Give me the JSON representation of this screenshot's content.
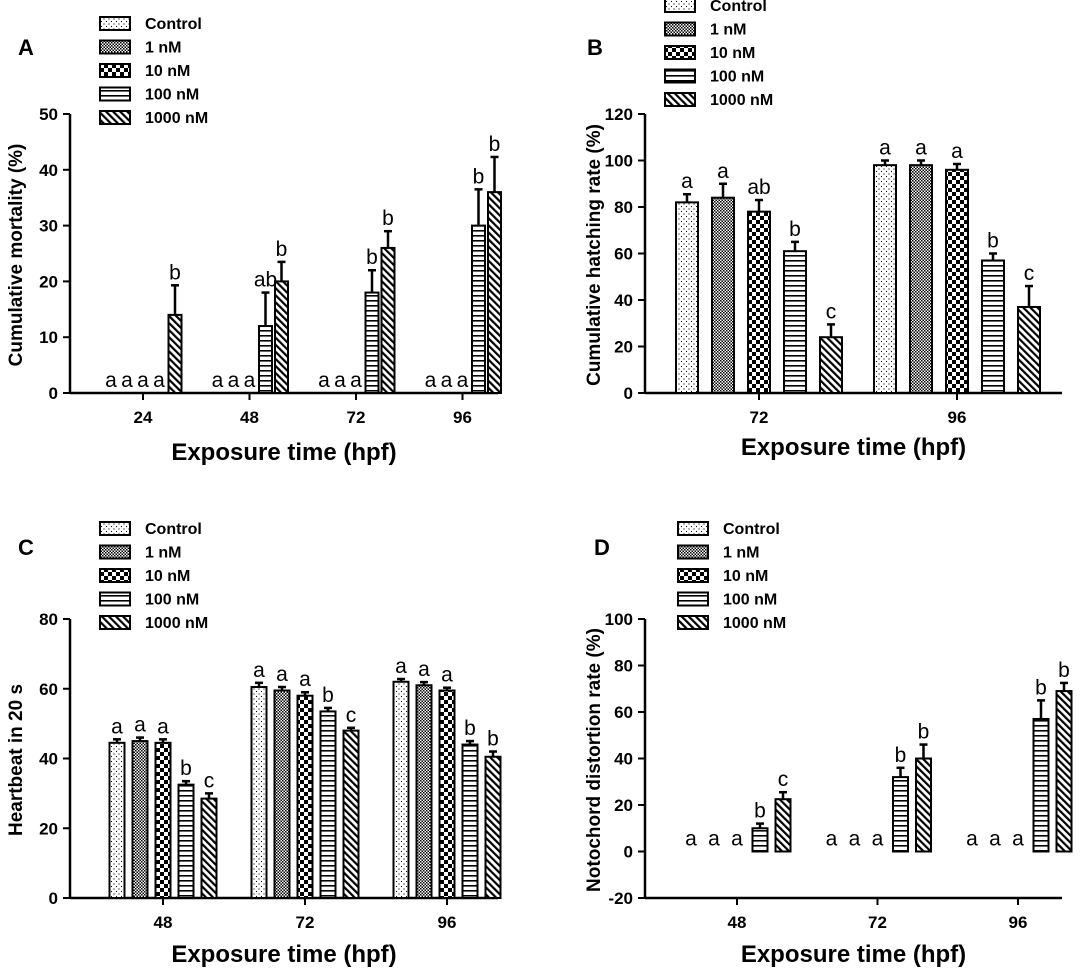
{
  "legend_labels": [
    "Control",
    "1 nM",
    "10 nM",
    "100 nM",
    "1000 nM"
  ],
  "colors": {
    "ink": "#000000",
    "fill": "#ffffff"
  },
  "chart_data": [
    {
      "panel": "A",
      "type": "bar",
      "xlabel": "Exposure time (hpf)",
      "ylabel": "Cumulative mortality (%)",
      "ylim": [
        0,
        50
      ],
      "yticks": [
        0,
        10,
        20,
        30,
        40,
        50
      ],
      "categories": [
        "24",
        "48",
        "72",
        "96"
      ],
      "series": [
        {
          "name": "Control",
          "values": [
            0,
            0,
            0,
            0
          ],
          "errors": [
            0,
            0,
            0,
            0
          ],
          "letters": [
            "a",
            "a",
            "a",
            "a"
          ]
        },
        {
          "name": "1 nM",
          "values": [
            0,
            0,
            0,
            0
          ],
          "errors": [
            0,
            0,
            0,
            0
          ],
          "letters": [
            "a",
            "a",
            "a",
            "a"
          ]
        },
        {
          "name": "10 nM",
          "values": [
            0,
            0,
            0,
            0
          ],
          "errors": [
            0,
            0,
            0,
            0
          ],
          "letters": [
            "a",
            "a",
            "a",
            "a"
          ]
        },
        {
          "name": "100 nM",
          "values": [
            0,
            12,
            18,
            30
          ],
          "errors": [
            0,
            6,
            4,
            6.5
          ],
          "letters": [
            "a",
            "ab",
            "b",
            "b"
          ]
        },
        {
          "name": "1000 nM",
          "values": [
            14,
            20,
            26,
            36
          ],
          "errors": [
            5.3,
            3.5,
            3,
            6.3
          ],
          "letters": [
            "b",
            "b",
            "b",
            "b"
          ]
        }
      ]
    },
    {
      "panel": "B",
      "type": "bar",
      "xlabel": "Exposure time (hpf)",
      "ylabel": "Cumulative hatching rate (%)",
      "ylim": [
        0,
        120
      ],
      "yticks": [
        0,
        20,
        40,
        60,
        80,
        100,
        120
      ],
      "categories": [
        "72",
        "96"
      ],
      "series": [
        {
          "name": "Control",
          "values": [
            82,
            98
          ],
          "errors": [
            3.5,
            2
          ],
          "letters": [
            "a",
            "a"
          ]
        },
        {
          "name": "1 nM",
          "values": [
            84,
            98
          ],
          "errors": [
            6,
            2
          ],
          "letters": [
            "a",
            "a"
          ]
        },
        {
          "name": "10 nM",
          "values": [
            78,
            96
          ],
          "errors": [
            5,
            2.5
          ],
          "letters": [
            "ab",
            "a"
          ]
        },
        {
          "name": "100 nM",
          "values": [
            61,
            57
          ],
          "errors": [
            4,
            3
          ],
          "letters": [
            "b",
            "b"
          ]
        },
        {
          "name": "1000 nM",
          "values": [
            24,
            37
          ],
          "errors": [
            5.5,
            9
          ],
          "letters": [
            "c",
            "c"
          ]
        }
      ]
    },
    {
      "panel": "C",
      "type": "bar",
      "xlabel": "Exposure time (hpf)",
      "ylabel": "Heartbeat in 20 s",
      "ylim": [
        0,
        80
      ],
      "yticks": [
        0,
        20,
        40,
        60,
        80
      ],
      "categories": [
        "48",
        "72",
        "96"
      ],
      "series": [
        {
          "name": "Control",
          "values": [
            44.5,
            60.5,
            62
          ],
          "errors": [
            1,
            1.2,
            0.8
          ],
          "letters": [
            "a",
            "a",
            "a"
          ]
        },
        {
          "name": "1 nM",
          "values": [
            45,
            59.5,
            61
          ],
          "errors": [
            1,
            1,
            0.9
          ],
          "letters": [
            "a",
            "a",
            "a"
          ]
        },
        {
          "name": "10 nM",
          "values": [
            44.5,
            58,
            59.5
          ],
          "errors": [
            1,
            1,
            0.8
          ],
          "letters": [
            "a",
            "a",
            "a"
          ]
        },
        {
          "name": "100 nM",
          "values": [
            32.5,
            53.5,
            44
          ],
          "errors": [
            1,
            1,
            1
          ],
          "letters": [
            "b",
            "b",
            "b"
          ]
        },
        {
          "name": "1000 nM",
          "values": [
            28.5,
            48,
            40.5
          ],
          "errors": [
            1.5,
            0.8,
            1.5
          ],
          "letters": [
            "c",
            "c",
            "b"
          ]
        }
      ]
    },
    {
      "panel": "D",
      "type": "bar",
      "xlabel": "Exposure time (hpf)",
      "ylabel": "Notochord distortion rate (%)",
      "ylim": [
        -20,
        100
      ],
      "yticks": [
        -20,
        0,
        20,
        40,
        60,
        80,
        100
      ],
      "categories": [
        "48",
        "72",
        "96"
      ],
      "series": [
        {
          "name": "Control",
          "values": [
            0,
            0,
            0
          ],
          "errors": [
            0,
            0,
            0
          ],
          "letters": [
            "a",
            "a",
            "a"
          ]
        },
        {
          "name": "1 nM",
          "values": [
            0,
            0,
            0
          ],
          "errors": [
            0,
            0,
            0
          ],
          "letters": [
            "a",
            "a",
            "a"
          ]
        },
        {
          "name": "10 nM",
          "values": [
            0,
            0,
            0
          ],
          "errors": [
            0,
            0,
            0
          ],
          "letters": [
            "a",
            "a",
            "a"
          ]
        },
        {
          "name": "100 nM",
          "values": [
            10,
            32,
            57
          ],
          "errors": [
            2,
            4,
            8
          ],
          "letters": [
            "b",
            "b",
            "b"
          ]
        },
        {
          "name": "1000 nM",
          "values": [
            22.5,
            40,
            69
          ],
          "errors": [
            3,
            6,
            3.5
          ],
          "letters": [
            "c",
            "b",
            "b"
          ]
        }
      ]
    }
  ]
}
